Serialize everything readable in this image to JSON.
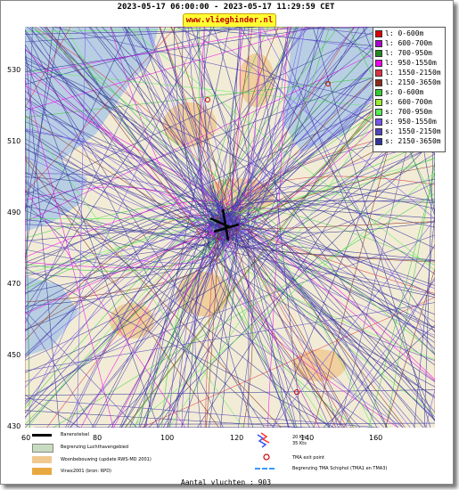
{
  "header": {
    "period": "2023-05-17 06:00:00 - 2023-05-17 11:29:59 CET",
    "website": "www.vlieghinder.nl"
  },
  "axes": {
    "y_ticks": [
      "530",
      "510",
      "490",
      "470",
      "450",
      "430"
    ],
    "x_ticks": [
      "60",
      "80",
      "100",
      "120",
      "140",
      "160"
    ]
  },
  "legend": {
    "items": [
      {
        "label": "l: 0-600m",
        "color": "#dd0000"
      },
      {
        "label": "l: 600-700m",
        "color": "#aa00cc"
      },
      {
        "label": "l: 700-950m",
        "color": "#228822"
      },
      {
        "label": "l: 950-1550m",
        "color": "#ee00ee"
      },
      {
        "label": "l: 1550-2150m",
        "color": "#dd3344"
      },
      {
        "label": "l: 2150-3650m",
        "color": "#8b2a1a"
      },
      {
        "label": "s: 0-600m",
        "color": "#33cc33"
      },
      {
        "label": "s: 600-700m",
        "color": "#99ee33"
      },
      {
        "label": "s: 700-950m",
        "color": "#55ee55"
      },
      {
        "label": "s: 950-1550m",
        "color": "#7755ee"
      },
      {
        "label": "s: 1550-2150m",
        "color": "#5544bb"
      },
      {
        "label": "s: 2150-3650m",
        "color": "#333399"
      }
    ]
  },
  "map_legend": {
    "runway": "Banenstelsel",
    "airport_boundary": "Begrenzing Luchthavengebied",
    "housing": "Woonbebouwing (update RWS-MD 2001)",
    "vinex": "Vinex2001 (bron: RPD)",
    "wind_20": "20 Kts",
    "wind_35": "35 Kts",
    "tma_exit": "TMA exit point",
    "tma_boundary": "Begrenzing TMA Schiphol  (TMA1 en TMA3)"
  },
  "footer": {
    "flight_count": "Aantal vluchten : 903"
  }
}
